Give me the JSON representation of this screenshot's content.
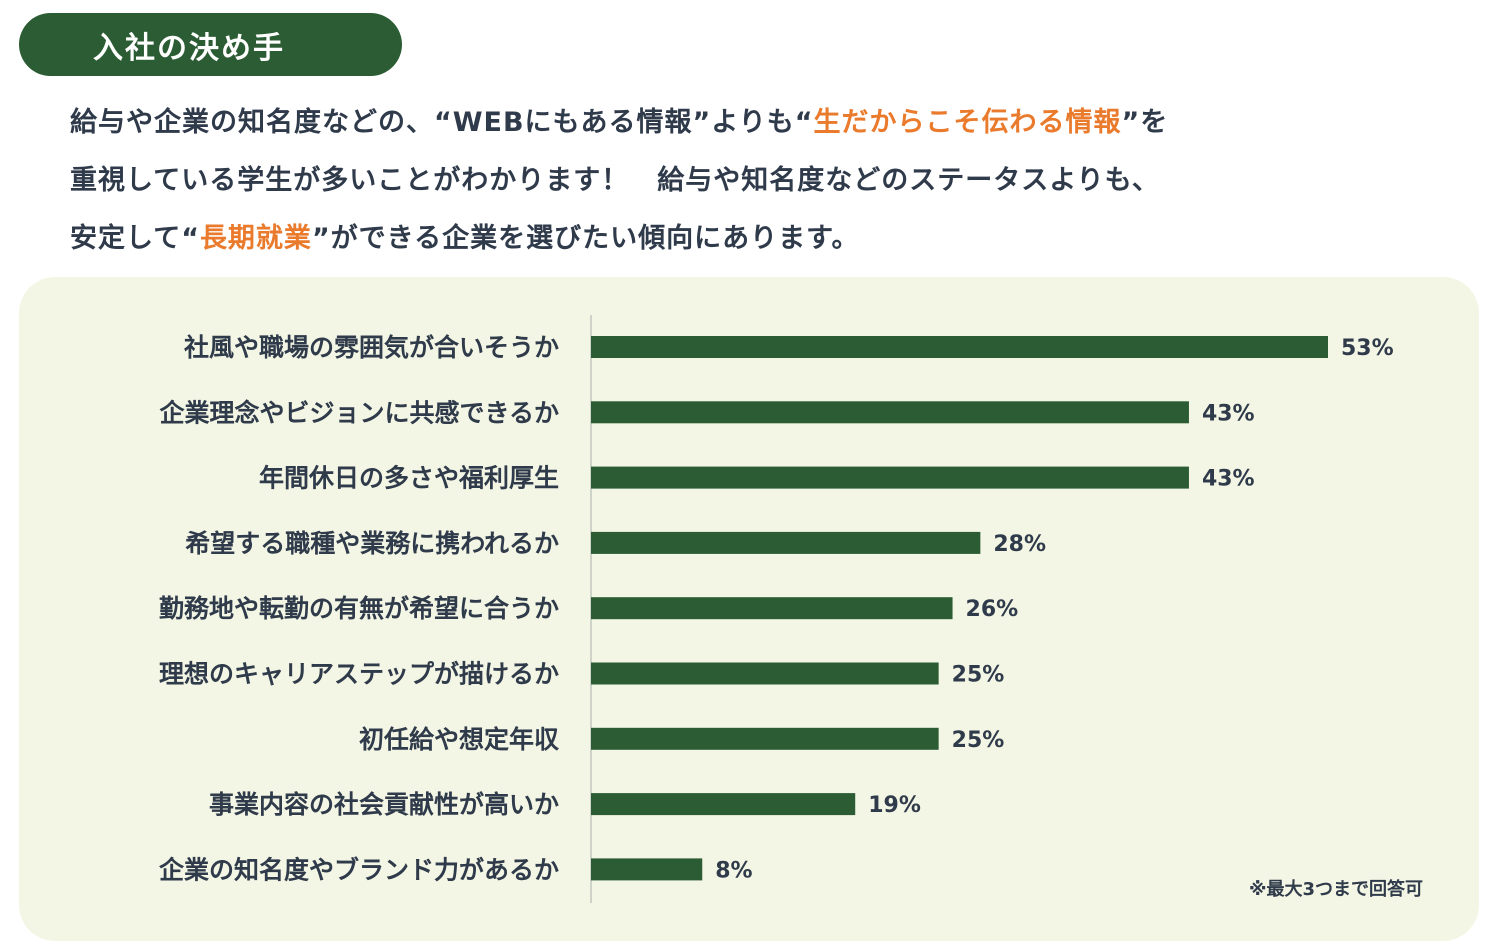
{
  "header": {
    "title": "入社の決め手"
  },
  "intro": {
    "line1_a": "給与や企業の知名度などの、“WEBにもある情報”よりも“",
    "line1_hl": "生だからこそ伝わる情報",
    "line1_b": "”を",
    "line2": "重視している学生が多いことがわかります！　給与や知名度などのステータスよりも、",
    "line3_a": "安定して“",
    "line3_hl": "長期就業",
    "line3_b": "”ができる企業を選びたい傾向にあります。"
  },
  "footnote": "※最大3つまで回答可",
  "colors": {
    "bar": "#2b5c33",
    "accent": "#ea7a2c",
    "panel_bg": "#f3f6e4",
    "text": "#2f3a4a",
    "axis": "#cfd2c8"
  },
  "chart_data": {
    "type": "bar",
    "orientation": "horizontal",
    "categories": [
      "社風や職場の雰囲気が合いそうか",
      "企業理念やビジョンに共感できるか",
      "年間休日の多さや福利厚生",
      "希望する職種や業務に携われるか",
      "勤務地や転勤の有無が希望に合うか",
      "理想のキャリアステップが描けるか",
      "初任給や想定年収",
      "事業内容の社会貢献性が高いか",
      "企業の知名度やブランド力があるか"
    ],
    "values": [
      53,
      43,
      43,
      28,
      26,
      25,
      25,
      19,
      8
    ],
    "value_labels": [
      "53%",
      "43%",
      "43%",
      "28%",
      "26%",
      "25%",
      "25%",
      "19%",
      "8%"
    ],
    "unit": "%",
    "xlim": [
      0,
      53
    ],
    "grid": false,
    "legend": "none"
  }
}
